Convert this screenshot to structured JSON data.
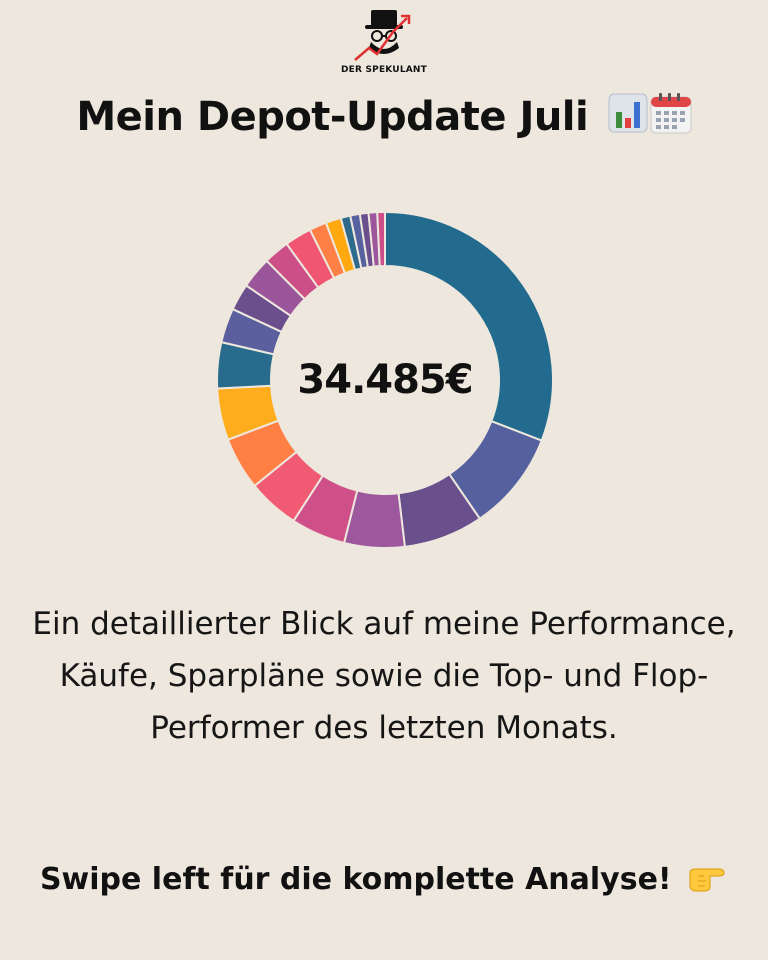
{
  "brand": {
    "name": "DER SPEKULANT",
    "logo_icon": "speculator-top-hat-icon"
  },
  "title": "Mein Depot-Update Juli",
  "title_icons": [
    "bar-chart-icon",
    "calendar-icon"
  ],
  "chart_data": {
    "type": "pie",
    "donut": true,
    "center_label": "34.485€",
    "values": [
      33.5,
      10.4,
      8.3,
      6.3,
      5.7,
      5.4,
      5.5,
      5.4,
      4.8,
      3.6,
      2.8,
      3.3,
      2.7,
      2.8,
      1.8,
      1.6,
      1.0,
      1.0,
      0.9,
      0.9,
      0.8
    ],
    "colors": [
      "#226b8e",
      "#55609f",
      "#6a4f8d",
      "#9c579d",
      "#cf5088",
      "#f15a73",
      "#ff7f45",
      "#ffad1c",
      "#296b8d",
      "#5b5f9e",
      "#6b4e8c",
      "#9b559b",
      "#cd4f87",
      "#f05672",
      "#ff8046",
      "#ffa80f",
      "#2e6a8b",
      "#56619f",
      "#6a4f8c",
      "#9d569c",
      "#cc4f89"
    ]
  },
  "description": "Ein detaillierter Blick auf meine Performance, Käufe, Sparpläne sowie die Top- und Flop-Performer des letzten Monats.",
  "cta": "Swipe left für die komplette Analyse!",
  "cta_icon": "pointing-hand-icon"
}
